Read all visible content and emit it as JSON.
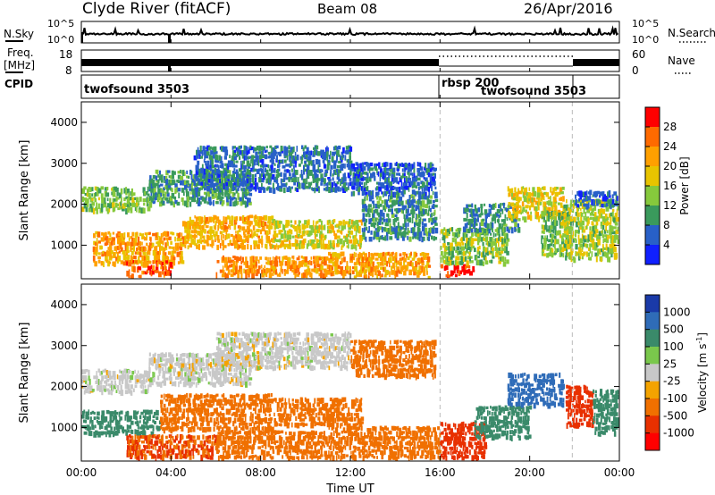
{
  "header": {
    "station": "Clyde River (fitACF)",
    "beam": "Beam 08",
    "date": "26/Apr/2016"
  },
  "noise_panel": {
    "left_label": "N.Sky",
    "right_label": "N.Search",
    "left_ticks": [
      "10^5",
      "10^0"
    ],
    "right_ticks": [
      "10^5",
      "10^0"
    ]
  },
  "freq_panel": {
    "left_label_line1": "Freq.",
    "left_label_line2": "[MHz]",
    "right_label": "Nave",
    "left_ticks": [
      "18",
      "8"
    ],
    "right_ticks": [
      "60",
      "0"
    ]
  },
  "cpid_panel": {
    "label": "CPID",
    "segments": [
      {
        "name": "twofsound 3503",
        "start_h": 0,
        "end_h": 16
      },
      {
        "name": "rbsp 200",
        "start_h": 16,
        "end_h": 21.9
      },
      {
        "name": "twofsound 3503",
        "start_h": 16,
        "end_h": 21.9
      }
    ]
  },
  "colorbars": {
    "power": {
      "label": "Power [dB]",
      "ticks": [
        "28",
        "24",
        "20",
        "16",
        "12",
        "8",
        "4"
      ],
      "colors": [
        "#ff0000",
        "#ff6a00",
        "#ffa000",
        "#e8c400",
        "#86c93c",
        "#3a9a5c",
        "#2860c8",
        "#1020ff"
      ]
    },
    "velocity": {
      "label": "Velocity [m s",
      "label_sup": "-1",
      "label_end": "]",
      "ticks": [
        "1000",
        "500",
        "100",
        "25",
        "-25",
        "-100",
        "-500",
        "-1000"
      ],
      "colors": [
        "#1a3aa8",
        "#2f6cb8",
        "#3a8a6a",
        "#7ac84c",
        "#c8c8c8",
        "#f4a300",
        "#f07000",
        "#e83000",
        "#ff0000"
      ]
    }
  },
  "chart_data": [
    {
      "type": "heatmap",
      "title": "Power",
      "xlabel": "Time UT",
      "ylabel": "Slant Range [km]",
      "xticks": [
        "00:00",
        "04:00",
        "08:00",
        "12:00",
        "16:00",
        "20:00",
        "00:00"
      ],
      "yticks": [
        1000,
        2000,
        3000,
        4000
      ],
      "xlim": [
        0,
        24
      ],
      "ylim": [
        180,
        4500
      ],
      "colorbar": "Power [dB]",
      "bands": [
        {
          "t0": 0.0,
          "t1": 3.0,
          "r0": 1900,
          "r1": 2500,
          "v": 13
        },
        {
          "t0": 3.0,
          "t1": 7.5,
          "r0": 2050,
          "r1": 2900,
          "v": 10
        },
        {
          "t0": 5.0,
          "t1": 12.0,
          "r0": 2400,
          "r1": 3500,
          "v": 7
        },
        {
          "t0": 12.0,
          "t1": 15.8,
          "r0": 2300,
          "r1": 3100,
          "v": 6
        },
        {
          "t0": 0.5,
          "t1": 4.5,
          "r0": 600,
          "r1": 1400,
          "v": 22
        },
        {
          "t0": 4.5,
          "t1": 8.5,
          "r0": 1000,
          "r1": 1800,
          "v": 21
        },
        {
          "t0": 8.5,
          "t1": 12.5,
          "r0": 1000,
          "r1": 1700,
          "v": 17
        },
        {
          "t0": 12.5,
          "t1": 15.8,
          "r0": 1200,
          "r1": 2300,
          "v": 9
        },
        {
          "t0": 2.0,
          "t1": 4.0,
          "r0": 250,
          "r1": 700,
          "v": 26
        },
        {
          "t0": 6.0,
          "t1": 11.0,
          "r0": 300,
          "r1": 800,
          "v": 23
        },
        {
          "t0": 11.0,
          "t1": 15.5,
          "r0": 250,
          "r1": 900,
          "v": 22
        },
        {
          "t0": 16.0,
          "t1": 17.5,
          "r0": 250,
          "r1": 600,
          "v": 30
        },
        {
          "t0": 16.0,
          "t1": 19.0,
          "r0": 600,
          "r1": 1500,
          "v": 14
        },
        {
          "t0": 17.0,
          "t1": 19.5,
          "r0": 1400,
          "r1": 2100,
          "v": 9
        },
        {
          "t0": 19.0,
          "t1": 21.5,
          "r0": 1700,
          "r1": 2500,
          "v": 18
        },
        {
          "t0": 20.5,
          "t1": 21.8,
          "r0": 800,
          "r1": 1900,
          "v": 13
        },
        {
          "t0": 21.5,
          "t1": 24.0,
          "r0": 700,
          "r1": 2200,
          "v": 15
        },
        {
          "t0": 22.0,
          "t1": 24.0,
          "r0": 2000,
          "r1": 2400,
          "v": 6
        }
      ]
    },
    {
      "type": "heatmap",
      "title": "Velocity",
      "xlabel": "Time UT",
      "ylabel": "Slant Range [km]",
      "xticks": [
        "00:00",
        "04:00",
        "08:00",
        "12:00",
        "16:00",
        "20:00",
        "00:00"
      ],
      "yticks": [
        1000,
        2000,
        3000,
        4000
      ],
      "xlim": [
        0,
        24
      ],
      "ylim": [
        180,
        4500
      ],
      "colorbar": "Velocity [m s-1]",
      "bands": [
        {
          "t0": 0.0,
          "t1": 3.0,
          "r0": 1900,
          "r1": 2500,
          "v": 0
        },
        {
          "t0": 3.0,
          "t1": 7.5,
          "r0": 2100,
          "r1": 2900,
          "v": 0
        },
        {
          "t0": 6.0,
          "t1": 12.0,
          "r0": 2500,
          "r1": 3400,
          "v": 0
        },
        {
          "t0": 12.0,
          "t1": 15.8,
          "r0": 2300,
          "r1": 3200,
          "v": -150
        },
        {
          "t0": 0.0,
          "t1": 3.5,
          "r0": 900,
          "r1": 1500,
          "v": 200
        },
        {
          "t0": 3.5,
          "t1": 8.5,
          "r0": 1000,
          "r1": 1900,
          "v": -150
        },
        {
          "t0": 8.5,
          "t1": 12.5,
          "r0": 1100,
          "r1": 1800,
          "v": -200
        },
        {
          "t0": 2.0,
          "t1": 6.0,
          "r0": 200,
          "r1": 900,
          "v": -300
        },
        {
          "t0": 6.0,
          "t1": 11.0,
          "r0": 300,
          "r1": 1000,
          "v": -200
        },
        {
          "t0": 11.0,
          "t1": 16.0,
          "r0": 300,
          "r1": 1100,
          "v": -250
        },
        {
          "t0": 16.0,
          "t1": 18.0,
          "r0": 300,
          "r1": 1200,
          "v": -350
        },
        {
          "t0": 17.5,
          "t1": 20.0,
          "r0": 800,
          "r1": 1600,
          "v": 150
        },
        {
          "t0": 19.0,
          "t1": 21.5,
          "r0": 1600,
          "r1": 2400,
          "v": 700
        },
        {
          "t0": 21.6,
          "t1": 22.8,
          "r0": 1100,
          "r1": 2100,
          "v": -600
        },
        {
          "t0": 22.8,
          "t1": 24.0,
          "r0": 900,
          "r1": 2000,
          "v": 180
        }
      ]
    }
  ]
}
